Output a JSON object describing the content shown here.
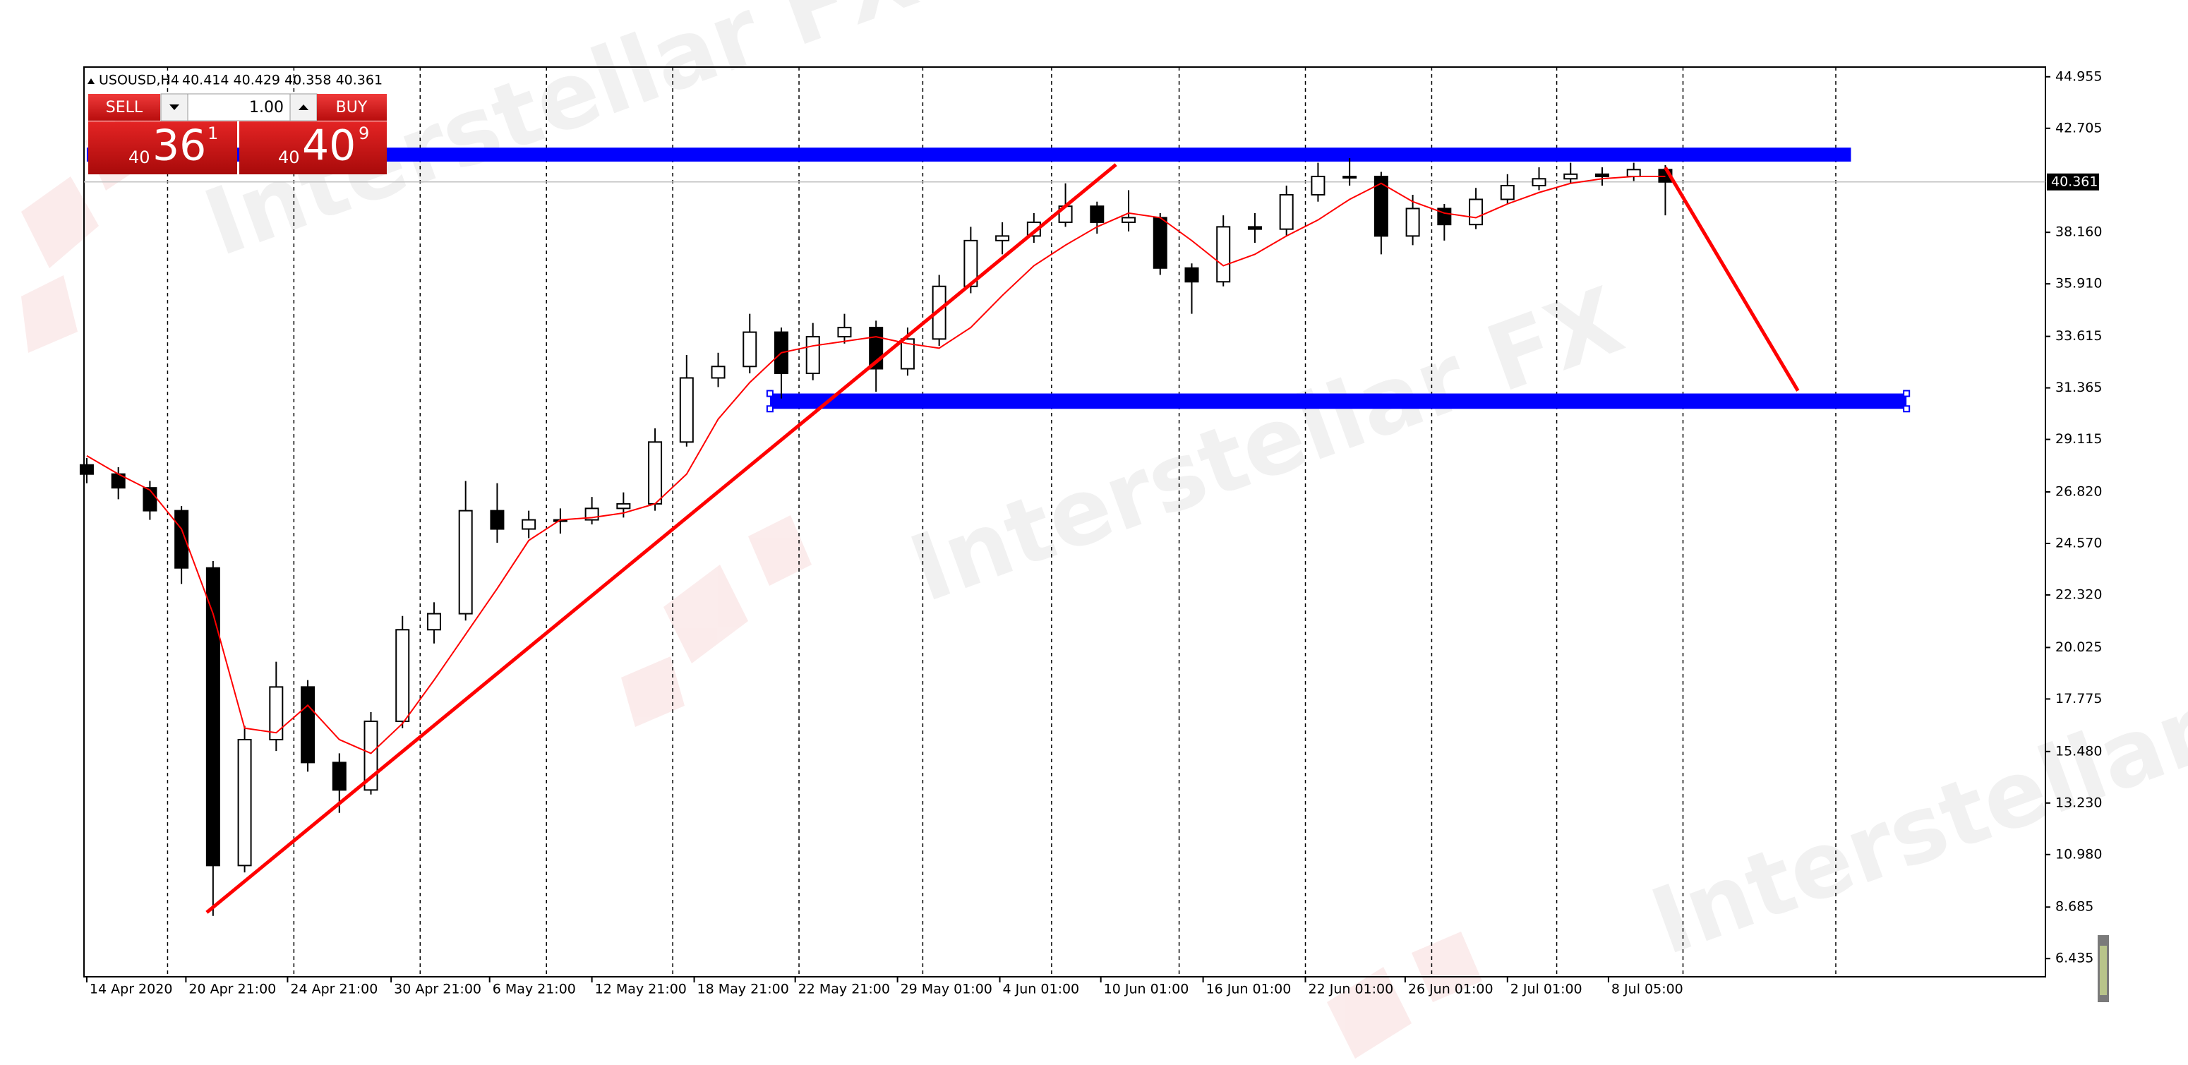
{
  "header": {
    "symbol": "USOUSD,H4",
    "ohlc": "40.414 40.429 40.358 40.361"
  },
  "trade_panel": {
    "sell": "SELL",
    "buy": "BUY",
    "volume": "1.00",
    "sell_price": {
      "big": "40",
      "main": "36",
      "small": "1"
    },
    "buy_price": {
      "big": "40",
      "main": "40",
      "small": "9"
    }
  },
  "watermark": "Interstellar FX",
  "chart_data": {
    "type": "candlestick",
    "x": [
      0,
      0.25,
      0.5,
      0.75,
      1,
      1.25,
      1.5,
      1.75,
      2,
      2.25,
      2.5,
      2.75,
      3,
      3.25,
      3.5,
      3.75,
      4,
      4.25,
      4.5,
      4.75,
      5,
      5.25,
      5.5,
      5.75,
      6,
      6.25,
      6.5,
      6.75,
      7,
      7.25,
      7.5,
      7.75,
      8,
      8.25,
      8.5,
      8.75,
      9,
      9.25,
      9.5,
      9.75,
      10,
      10.25,
      10.5,
      10.75,
      11,
      11.25,
      11.5,
      11.75,
      12,
      12.25,
      12.5
    ],
    "open": [
      28.0,
      27.6,
      27.0,
      26.0,
      23.5,
      10.5,
      16.0,
      18.3,
      15.0,
      13.8,
      16.8,
      20.8,
      21.5,
      26.0,
      25.2,
      25.6,
      25.6,
      26.1,
      26.3,
      29.0,
      31.8,
      32.3,
      33.8,
      32.0,
      33.6,
      34.0,
      32.2,
      33.5,
      35.8,
      37.8,
      38.0,
      38.6,
      39.3,
      38.6,
      38.8,
      36.6,
      36.0,
      38.4,
      38.3,
      39.8,
      40.6,
      40.6,
      38.0,
      39.2,
      38.5,
      39.6,
      40.2,
      40.5,
      40.7,
      40.6,
      40.9
    ],
    "high": [
      28.3,
      27.9,
      27.3,
      26.2,
      23.8,
      16.6,
      19.4,
      18.6,
      15.4,
      17.2,
      21.4,
      22.0,
      27.3,
      27.2,
      26.0,
      26.1,
      26.6,
      26.8,
      29.6,
      32.8,
      32.9,
      34.6,
      34.0,
      34.2,
      34.6,
      34.3,
      34.0,
      36.3,
      38.4,
      38.6,
      39.0,
      40.3,
      39.5,
      40.0,
      39.0,
      36.8,
      38.9,
      39.0,
      40.2,
      41.2,
      41.4,
      40.8,
      39.8,
      39.4,
      40.1,
      40.7,
      41.0,
      41.2,
      41.0,
      41.2,
      41.1
    ],
    "low": [
      27.2,
      26.5,
      25.6,
      22.8,
      8.3,
      10.2,
      15.5,
      14.6,
      12.8,
      13.6,
      16.5,
      20.2,
      21.2,
      24.6,
      24.8,
      25.0,
      25.4,
      25.7,
      26.0,
      28.8,
      31.4,
      32.0,
      30.9,
      31.7,
      33.3,
      31.2,
      31.9,
      33.2,
      35.5,
      37.2,
      37.7,
      38.4,
      38.1,
      38.2,
      36.3,
      34.6,
      35.8,
      37.7,
      38.0,
      39.5,
      40.2,
      37.2,
      37.6,
      37.8,
      38.3,
      39.4,
      40.0,
      40.3,
      40.2,
      40.4,
      38.9
    ],
    "close": [
      27.6,
      27.0,
      26.0,
      23.5,
      10.5,
      16.0,
      18.3,
      15.0,
      13.8,
      16.8,
      20.8,
      21.5,
      26.0,
      25.2,
      25.6,
      25.6,
      26.1,
      26.3,
      29.0,
      31.8,
      32.3,
      33.8,
      32.0,
      33.6,
      34.0,
      32.2,
      33.5,
      35.8,
      37.8,
      38.0,
      38.6,
      39.3,
      38.6,
      38.8,
      36.6,
      36.0,
      38.4,
      38.3,
      39.8,
      40.6,
      40.6,
      38.0,
      39.2,
      38.5,
      39.6,
      40.2,
      40.5,
      40.7,
      40.6,
      40.9,
      40.361
    ],
    "color_up": "#ffffff",
    "color_down": "#000000",
    "wick_color": "#000000",
    "ma": {
      "color": "#ff0000",
      "values": [
        28.4,
        27.6,
        26.9,
        25.2,
        21.5,
        16.5,
        16.3,
        17.5,
        16.0,
        15.4,
        16.7,
        18.6,
        20.6,
        22.6,
        24.7,
        25.6,
        25.7,
        25.9,
        26.3,
        27.6,
        30.0,
        31.6,
        32.9,
        33.2,
        33.4,
        33.6,
        33.3,
        33.1,
        34.0,
        35.4,
        36.7,
        37.6,
        38.4,
        39.0,
        38.8,
        37.8,
        36.7,
        37.2,
        38.0,
        38.7,
        39.6,
        40.3,
        39.5,
        39.0,
        38.8,
        39.4,
        39.9,
        40.3,
        40.5,
        40.6,
        40.6
      ]
    },
    "xlim": [
      -0.022,
      15.51
    ],
    "ylim": [
      5.64,
      45.38
    ],
    "xticks": [
      {
        "value": 0,
        "label": "14 Apr 2020"
      },
      {
        "value": 0.785,
        "label": "20 Apr 21:00"
      },
      {
        "value": 1.59,
        "label": "24 Apr 21:00"
      },
      {
        "value": 2.41,
        "label": "30 Apr 21:00"
      },
      {
        "value": 3.19,
        "label": "6 May 21:00"
      },
      {
        "value": 4.0,
        "label": "12 May 21:00"
      },
      {
        "value": 4.81,
        "label": "18 May 21:00"
      },
      {
        "value": 5.61,
        "label": "22 May 21:00"
      },
      {
        "value": 6.42,
        "label": "29 May 01:00"
      },
      {
        "value": 7.23,
        "label": "4 Jun 01:00"
      },
      {
        "value": 8.03,
        "label": "10 Jun 01:00"
      },
      {
        "value": 8.84,
        "label": "16 Jun 01:00"
      },
      {
        "value": 9.65,
        "label": "22 Jun 01:00"
      },
      {
        "value": 10.44,
        "label": "26 Jun 01:00"
      },
      {
        "value": 11.25,
        "label": "2 Jul 01:00"
      },
      {
        "value": 12.05,
        "label": "8 Jul 05:00"
      }
    ],
    "xgrid": [
      0.64,
      1.64,
      2.64,
      3.64,
      4.64,
      5.64,
      6.62,
      7.64,
      8.65,
      9.65,
      10.65,
      11.64,
      12.64,
      13.85
    ],
    "yticks": [
      44.955,
      42.705,
      {
        "value": 38.16,
        "label": "38.160"
      },
      {
        "value": 35.91,
        "label": "35.910"
      },
      33.615,
      31.365,
      29.115,
      {
        "value": 26.82,
        "label": "26.820"
      },
      {
        "value": 24.57,
        "label": "24.570"
      },
      {
        "value": 22.32,
        "label": "22.320"
      },
      20.025,
      17.775,
      {
        "value": 15.48,
        "label": "15.480"
      },
      {
        "value": 13.23,
        "label": "13.230"
      },
      {
        "value": 10.98,
        "label": "10.980"
      },
      8.685,
      6.435
    ],
    "last_price": 40.361,
    "zones": [
      {
        "x": [
          0,
          13.97
        ],
        "y": [
          41.25,
          41.86
        ],
        "color": "#0000ff"
      },
      {
        "x": [
          5.41,
          14.41
        ],
        "y": [
          30.45,
          31.12
        ],
        "color": "#0000ff"
      }
    ],
    "trendlines": [
      {
        "x": [
          0.95,
          8.15
        ],
        "y": [
          8.45,
          41.12
        ],
        "color": "#ff0000"
      },
      {
        "x": [
          12.5,
          13.55
        ],
        "y": [
          40.99,
          31.24
        ],
        "color": "#ff0000"
      }
    ]
  }
}
